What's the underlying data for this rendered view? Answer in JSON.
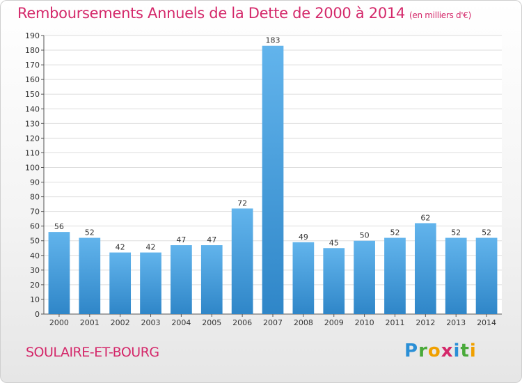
{
  "header": {
    "title": "Remboursements Annuels de la Dette de 2000 à 2014",
    "unit": "(en milliers d'€)"
  },
  "footer": {
    "commune": "SOULAIRE-ET-BOURG",
    "logo": {
      "p": "P",
      "r": "r",
      "o": "o",
      "x": "x",
      "i1": "i",
      "t": "t",
      "i2": "i"
    }
  },
  "colors": {
    "bar_top": "#62b4ec",
    "bar_bottom": "#2f86c8",
    "accent": "#d4286a"
  },
  "chart_data": {
    "type": "bar",
    "title": "Remboursements Annuels de la Dette de 2000 à 2014",
    "subtitle": "(en milliers d'€)",
    "categories": [
      "2000",
      "2001",
      "2002",
      "2003",
      "2004",
      "2005",
      "2006",
      "2007",
      "2008",
      "2009",
      "2010",
      "2011",
      "2012",
      "2013",
      "2014"
    ],
    "values": [
      56,
      52,
      42,
      42,
      47,
      47,
      72,
      183,
      49,
      45,
      50,
      52,
      62,
      52,
      52
    ],
    "ylim": [
      0,
      190
    ],
    "yticks": [
      0,
      10,
      20,
      30,
      40,
      50,
      60,
      70,
      80,
      90,
      100,
      110,
      120,
      130,
      140,
      150,
      160,
      170,
      180,
      190
    ],
    "grid": true,
    "legend": "none"
  }
}
